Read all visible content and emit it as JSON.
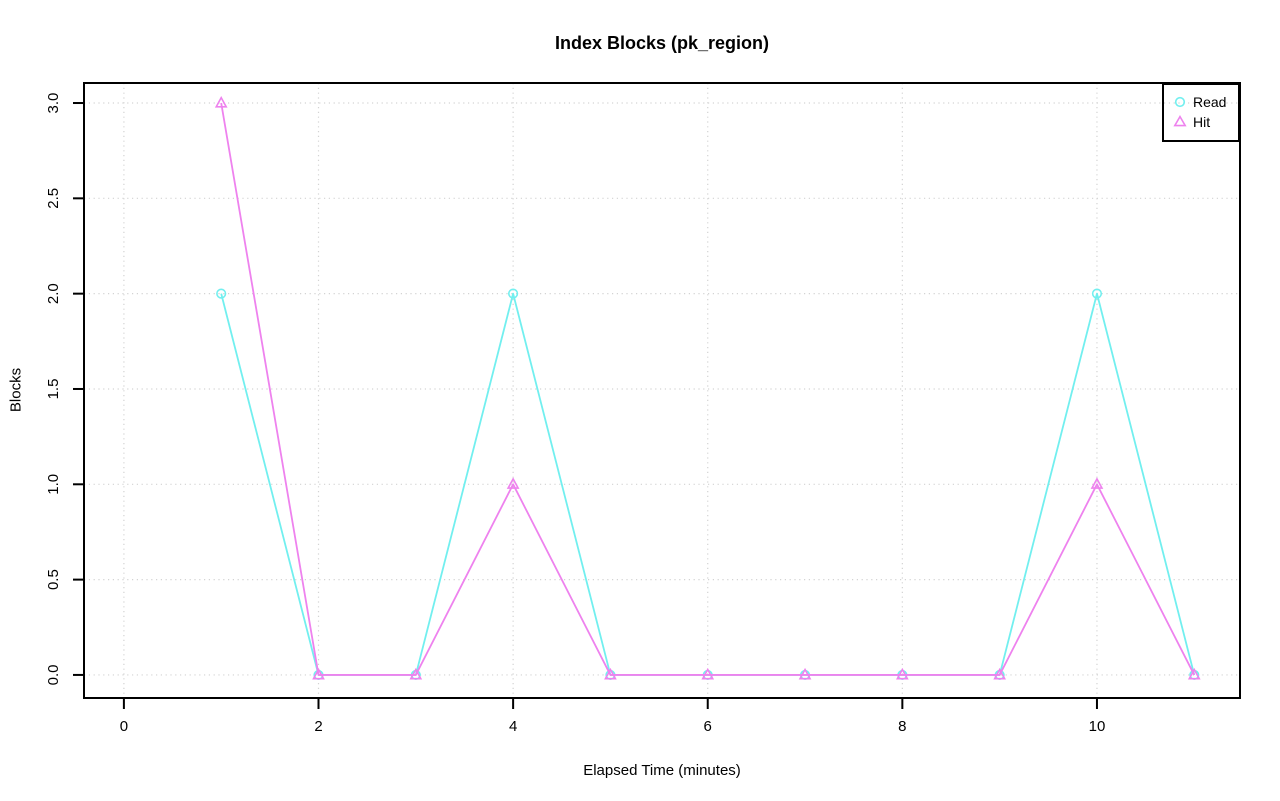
{
  "page": {
    "background": "#ffffff"
  },
  "chart_data": {
    "type": "line",
    "title": "Index Blocks (pk_region)",
    "xlabel": "Elapsed Time (minutes)",
    "ylabel": "Blocks",
    "x": [
      1,
      2,
      3,
      4,
      5,
      6,
      7,
      8,
      9,
      10,
      11
    ],
    "series": [
      {
        "name": "Read",
        "marker": "circle",
        "color": "#72EFEF",
        "values": [
          2,
          0,
          0,
          2,
          0,
          0,
          0,
          0,
          0,
          2,
          0
        ]
      },
      {
        "name": "Hit",
        "marker": "triangle",
        "color": "#EE82EE",
        "values": [
          3,
          0,
          0,
          1,
          0,
          0,
          0,
          0,
          0,
          1,
          0
        ]
      }
    ],
    "xlim": [
      -0.41,
      11.47
    ],
    "ylim": [
      -0.121,
      3.105
    ],
    "xticks": {
      "values": [
        0,
        2,
        4,
        6,
        8,
        10
      ],
      "labels": [
        "0",
        "2",
        "4",
        "6",
        "8",
        "10"
      ]
    },
    "yticks": {
      "values": [
        0,
        0.5,
        1,
        1.5,
        2,
        2.5,
        3
      ],
      "labels": [
        "0.0",
        "0.5",
        "1.0",
        "1.5",
        "2.0",
        "2.5",
        "3.0"
      ]
    },
    "grid": true,
    "grid_color": "#d3d3d3",
    "axis_color": "#000000",
    "legend": {
      "position": "topright",
      "entries": [
        "Read",
        "Hit"
      ]
    }
  }
}
